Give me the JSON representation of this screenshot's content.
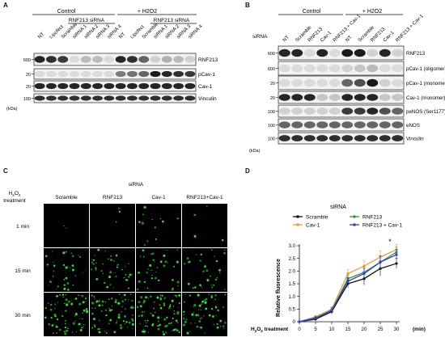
{
  "panels": {
    "A": {
      "letter": "A",
      "group_headers": [
        "Control",
        "+ H2O2"
      ],
      "sub_headers": [
        "RNF213 siRNA",
        "RNF213 siRNA"
      ],
      "lanes": [
        "NT",
        "Lipofect",
        "Scramble",
        "siRNA 1",
        "siRNA 2",
        "siRNA 3",
        "siRNA 4",
        "NT",
        "Lipofect",
        "Scramble",
        "siRNA 1",
        "siRNA 2",
        "siRNA 3",
        "siRNA 4"
      ],
      "markers": [
        "600",
        "20",
        "20",
        "100"
      ],
      "kda": "(kDa)",
      "rows": [
        "RNF213",
        "pCav-1",
        "Cav-1",
        "Vinculin"
      ]
    },
    "B": {
      "letter": "B",
      "group_headers": [
        "Control",
        "+ H2O2"
      ],
      "sirna_label": "siRNA",
      "lanes": [
        "NT",
        "Scramble",
        "RNF213",
        "Cav-1",
        "RNF213 + Cav-1",
        "NT",
        "Scramble",
        "RNF213",
        "Cav-1",
        "RNF213 + Cav-1"
      ],
      "markers": [
        "600",
        "600",
        "20",
        "20",
        "100",
        "100",
        "100"
      ],
      "kda": "(kDa)",
      "rows": [
        "RNF213",
        "pCav-1 (oligomer)",
        "pCav-1 (monomer)",
        "Cav-1 (monomer)",
        "peNOS (Ser1177)",
        "eNOS",
        "Vinculin"
      ]
    },
    "C": {
      "letter": "C",
      "sirna_label": "siRNA",
      "treatment_label": "H2O2 treatment",
      "columns": [
        "Scramble",
        "RNF213",
        "Cav-1",
        "RNF213+Cav-1"
      ],
      "rows": [
        "1 min",
        "15 min",
        "30 min"
      ]
    },
    "D": {
      "letter": "D"
    }
  },
  "chart_data": {
    "type": "line",
    "legend_title": "siRNA",
    "legend_placement": "top",
    "x": [
      0,
      5,
      10,
      15,
      20,
      25,
      30
    ],
    "xlabel_prefix": "H2O2 treatment",
    "xlabel_unit": "(min)",
    "ylabel": "Relative fluorescence",
    "ylim": [
      0,
      3.0
    ],
    "yticks": [
      "0",
      "0.5",
      "1.0",
      "1.5",
      "2.0",
      "2.5",
      "3.0"
    ],
    "annotation": "*",
    "series": [
      {
        "name": "Scramble",
        "color": "#111111",
        "values": [
          0,
          0.1,
          0.4,
          1.5,
          1.7,
          2.1,
          2.3
        ],
        "err": [
          0,
          0.05,
          0.1,
          0.15,
          0.25,
          0.3,
          0.2
        ]
      },
      {
        "name": "Cav-1",
        "color": "#f39c33",
        "values": [
          0,
          0.2,
          0.5,
          1.9,
          2.2,
          2.55,
          2.85
        ],
        "err": [
          0,
          0.05,
          0.1,
          0.15,
          0.2,
          0.25,
          0.2
        ]
      },
      {
        "name": "RNF213",
        "color": "#2e9a3a",
        "values": [
          0,
          0.15,
          0.45,
          1.7,
          1.95,
          2.35,
          2.75
        ],
        "err": [
          0,
          0.05,
          0.1,
          0.15,
          0.2,
          0.25,
          0.2
        ]
      },
      {
        "name": "RNF213 + Cav-1",
        "color": "#2b3fd6",
        "values": [
          0,
          0.15,
          0.45,
          1.6,
          1.9,
          2.35,
          2.65
        ],
        "err": [
          0,
          0.05,
          0.1,
          0.15,
          0.2,
          0.25,
          0.2
        ]
      }
    ]
  }
}
